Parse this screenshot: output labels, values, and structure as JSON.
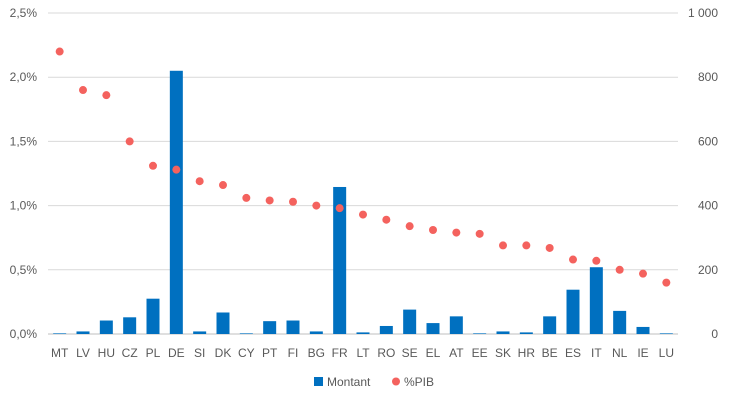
{
  "chart_data": {
    "type": "bar",
    "categories": [
      "MT",
      "LV",
      "HU",
      "CZ",
      "PL",
      "DE",
      "SI",
      "DK",
      "CY",
      "PT",
      "FI",
      "BG",
      "FR",
      "LT",
      "RO",
      "SE",
      "EL",
      "AT",
      "EE",
      "SK",
      "HR",
      "BE",
      "ES",
      "IT",
      "NL",
      "IE",
      "LU"
    ],
    "series": [
      {
        "name": "Montant",
        "type": "bar",
        "axis": "right",
        "color": "#0070C0",
        "values": [
          2,
          8,
          42,
          52,
          110,
          820,
          8,
          67,
          2,
          40,
          42,
          8,
          458,
          5,
          25,
          76,
          34,
          55,
          2,
          8,
          5,
          55,
          138,
          208,
          72,
          22,
          2
        ]
      },
      {
        "name": "%PIB",
        "type": "scatter",
        "axis": "left",
        "color": "#F4625E",
        "values": [
          2.2,
          1.9,
          1.86,
          1.5,
          1.31,
          1.28,
          1.19,
          1.16,
          1.06,
          1.04,
          1.03,
          1.0,
          0.98,
          0.93,
          0.89,
          0.84,
          0.81,
          0.79,
          0.78,
          0.69,
          0.69,
          0.67,
          0.58,
          0.57,
          0.5,
          0.47,
          0.4
        ]
      }
    ],
    "left_axis": {
      "ylim": [
        0,
        2.5
      ],
      "ticks": [
        "0,0%",
        "0,5%",
        "1,0%",
        "1,5%",
        "2,0%",
        "2,5%"
      ]
    },
    "right_axis": {
      "ylim": [
        0,
        1000
      ],
      "ticks": [
        "0",
        "200",
        "400",
        "600",
        "800",
        "1 000"
      ]
    },
    "grid": true,
    "legend": {
      "placement": "bottom",
      "entries": [
        "Montant",
        "%PIB"
      ]
    },
    "title": "",
    "xlabel": "",
    "ylabel": ""
  }
}
